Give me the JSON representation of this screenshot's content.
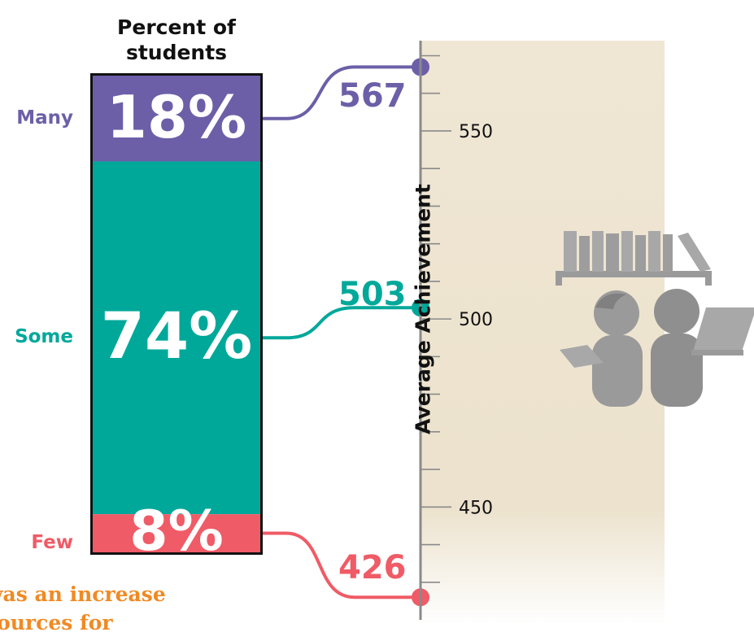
{
  "chart_data": {
    "type": "bar",
    "title": "Percent of students",
    "ylabel": "Average Achievement",
    "ylim": [
      420,
      574
    ],
    "y_ticks": [
      450,
      500,
      550
    ],
    "grid": false,
    "categories": [
      "Many",
      "Some",
      "Few"
    ],
    "series": [
      {
        "name": "Percent of students",
        "values": [
          18,
          74,
          8
        ]
      },
      {
        "name": "Average Achievement",
        "values": [
          567,
          503,
          426
        ]
      }
    ],
    "percent_labels": [
      "18%",
      "74%",
      "8%"
    ],
    "colors": [
      "#6c5fa8",
      "#00a89a",
      "#ef5b66"
    ]
  },
  "caption": "was an increase\nsources for",
  "illustration": "students-reading-bookshelf-icon",
  "panel_color": "#ece2cd"
}
